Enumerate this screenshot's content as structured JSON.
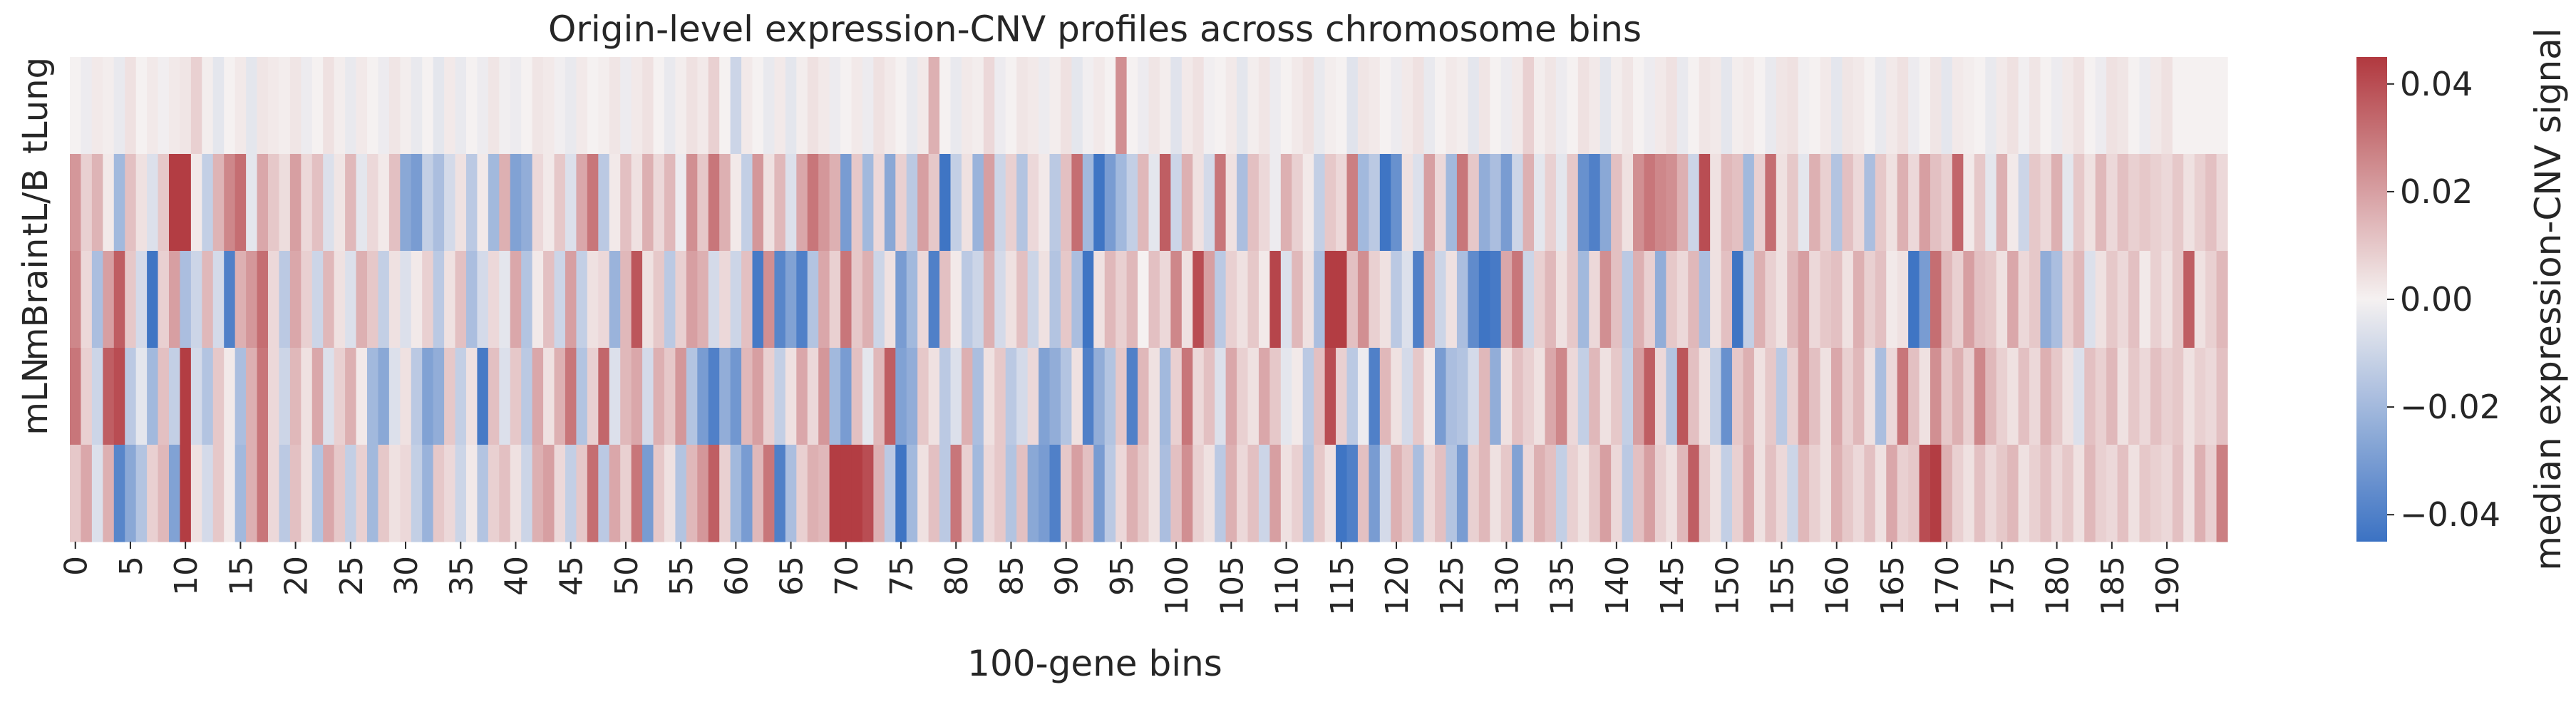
{
  "chart_data": {
    "type": "heatmap",
    "title": "Origin-level expression-CNV profiles across chromosome bins",
    "xlabel": "100-gene bins",
    "ylabel": "",
    "rows": [
      "tLung",
      "tL/B",
      "mBrain",
      "mLN",
      ""
    ],
    "x_tick_labels": [
      "0",
      "5",
      "10",
      "15",
      "20",
      "25",
      "30",
      "35",
      "40",
      "45",
      "50",
      "55",
      "60",
      "65",
      "70",
      "75",
      "80",
      "85",
      "90",
      "95",
      "100",
      "105",
      "110",
      "115",
      "120",
      "125",
      "130",
      "135",
      "140",
      "145",
      "150",
      "155",
      "160",
      "165",
      "170",
      "175",
      "180",
      "185",
      "190"
    ],
    "x_tick_step": 5,
    "n_bins": 196,
    "colorbar": {
      "label": "median expression-CNV signal",
      "ticks": [
        "0.04",
        "0.02",
        "0.00",
        "−0.02",
        "−0.04"
      ],
      "tick_values": [
        0.04,
        0.02,
        0.0,
        -0.02,
        -0.04
      ],
      "vmin": -0.045,
      "vmax": 0.045,
      "colormap": "vlag",
      "low_color": "#3b72c3",
      "mid_color": "#f5f1f1",
      "high_color": "#b1393f"
    },
    "values": [
      [
        0.0,
        -0.002,
        0.002,
        0.001,
        -0.003,
        0.004,
        0.0,
        0.002,
        -0.001,
        0.002,
        0.003,
        0.008,
        0.001,
        -0.004,
        0.0,
        0.002,
        -0.004,
        0.003,
        0.002,
        0.001,
        0.003,
        -0.002,
        0.0,
        0.004,
        0.001,
        -0.003,
        0.002,
        0.0,
        -0.002,
        0.003,
        0.001,
        -0.003,
        0.0,
        -0.004,
        0.002,
        -0.003,
        0.0,
        -0.002,
        0.003,
        -0.001,
        -0.002,
        0.0,
        0.003,
        0.002,
        -0.001,
        -0.003,
        0.002,
        0.0,
        0.001,
        0.003,
        -0.002,
        0.002,
        0.004,
        0.0,
        -0.003,
        0.001,
        0.004,
        0.002,
        0.008,
        0.0,
        -0.01,
        0.002,
        0.0,
        -0.003,
        0.002,
        -0.004,
        0.001,
        0.004,
        0.002,
        -0.002,
        0.0,
        0.002,
        -0.002,
        0.004,
        0.002,
        0.0,
        -0.003,
        0.002,
        0.016,
        0.0,
        -0.003,
        0.002,
        0.001,
        0.006,
        -0.002,
        0.0,
        0.003,
        0.002,
        -0.002,
        0.001,
        0.004,
        -0.004,
        -0.001,
        0.002,
        0.0,
        0.024,
        0.0,
        -0.002,
        0.003,
        0.001,
        -0.005,
        0.002,
        0.004,
        -0.001,
        0.0,
        0.002,
        -0.004,
        0.001,
        0.003,
        -0.002,
        0.0,
        0.002,
        0.004,
        -0.003,
        0.001,
        0.0,
        -0.005,
        0.003,
        0.002,
        0.0,
        -0.002,
        0.002,
        0.004,
        -0.003,
        0.0,
        0.002,
        0.001,
        -0.004,
        0.003,
        0.0,
        -0.002,
        0.002,
        0.008,
        0.001,
        0.003,
        -0.002,
        0.0,
        0.004,
        0.002,
        -0.004,
        0.001,
        0.003,
        0.0,
        -0.002,
        0.002,
        0.004,
        -0.003,
        0.0,
        0.003,
        0.002,
        -0.004,
        0.001,
        0.002,
        0.0,
        -0.003,
        0.003,
        0.004,
        -0.001,
        0.0,
        0.002,
        -0.004,
        0.003,
        0.002,
        0.0,
        -0.003,
        0.002,
        0.004,
        -0.002,
        0.0,
        0.003,
        -0.004,
        0.002,
        0.001,
        0.0,
        -0.003,
        0.002,
        0.004,
        -0.001,
        0.003,
        0.0,
        -0.002,
        0.002,
        0.004,
        0.0,
        -0.002,
        0.004,
        0.003,
        0.0,
        -0.002,
        0.002,
        0.004,
        0.0
      ],
      [
        0.022,
        0.008,
        0.015,
        0.002,
        -0.02,
        0.012,
        0.004,
        -0.006,
        0.01,
        0.044,
        0.044,
        0.002,
        -0.012,
        0.015,
        0.026,
        0.032,
        -0.004,
        0.018,
        0.01,
        0.005,
        0.02,
        0.006,
        0.012,
        -0.006,
        0.003,
        0.014,
        -0.004,
        0.006,
        0.002,
        0.012,
        -0.026,
        -0.03,
        -0.012,
        -0.018,
        -0.008,
        0.004,
        -0.014,
        0.002,
        -0.02,
        0.016,
        -0.028,
        -0.024,
        0.006,
        0.002,
        0.01,
        -0.006,
        0.018,
        0.03,
        -0.014,
        0.002,
        0.012,
        0.004,
        0.016,
        0.006,
        0.014,
        -0.002,
        0.024,
        0.01,
        0.03,
        0.016,
        0.002,
        -0.012,
        0.022,
        0.004,
        0.014,
        -0.006,
        0.018,
        0.03,
        0.022,
        0.016,
        -0.03,
        0.01,
        -0.02,
        0.006,
        -0.026,
        0.008,
        -0.014,
        0.02,
        0.01,
        -0.044,
        -0.012,
        0.004,
        -0.022,
        0.02,
        -0.01,
        0.008,
        -0.016,
        0.006,
        0.002,
        -0.014,
        0.012,
        0.032,
        -0.02,
        -0.044,
        -0.03,
        -0.02,
        -0.012,
        0.014,
        -0.004,
        0.036,
        -0.01,
        0.016,
        0.004,
        -0.008,
        0.03,
        0.004,
        -0.018,
        0.012,
        0.006,
        -0.002,
        0.016,
        0.008,
        0.002,
        -0.012,
        0.01,
        0.006,
        0.028,
        -0.02,
        -0.014,
        -0.044,
        -0.034,
        0.004,
        -0.006,
        0.02,
        0.006,
        -0.02,
        0.03,
        0.01,
        -0.024,
        -0.018,
        -0.03,
        -0.01,
        0.016,
        -0.004,
        0.008,
        -0.004,
        0.01,
        -0.034,
        -0.04,
        -0.026,
        0.012,
        0.004,
        0.024,
        0.03,
        0.026,
        0.024,
        0.016,
        -0.01,
        0.04,
        0.004,
        0.014,
        0.012,
        -0.02,
        0.008,
        0.032,
        0.004,
        0.01,
        -0.004,
        0.016,
        0.008,
        -0.016,
        0.012,
        0.006,
        -0.018,
        0.01,
        0.004,
        0.016,
        0.006,
        0.02,
        0.012,
        0.008,
        0.034,
        0.002,
        0.01,
        -0.004,
        0.016,
        0.002,
        -0.01,
        0.01,
        0.006,
        0.016,
        -0.004,
        0.01,
        0.004,
        0.014,
        0.006,
        0.012,
        0.008,
        0.01,
        0.008,
        0.006,
        0.01,
        0.004,
        0.008,
        0.012,
        0.006
      ],
      [
        0.026,
        0.006,
        -0.018,
        0.02,
        0.036,
        0.01,
        -0.008,
        -0.044,
        0.008,
        0.02,
        -0.018,
        -0.01,
        0.014,
        -0.008,
        -0.04,
        0.016,
        0.022,
        0.032,
        0.006,
        -0.014,
        0.018,
        0.008,
        -0.01,
        0.014,
        0.004,
        -0.006,
        0.016,
        0.01,
        -0.012,
        0.004,
        -0.006,
        0.002,
        0.008,
        -0.014,
        0.004,
        0.012,
        -0.018,
        -0.008,
        0.006,
        -0.004,
        0.018,
        -0.016,
        0.002,
        0.012,
        -0.01,
        0.02,
        -0.012,
        0.004,
        0.006,
        -0.022,
        0.014,
        0.038,
        0.004,
        0.01,
        -0.014,
        0.008,
        0.02,
        0.016,
        -0.008,
        0.006,
        -0.01,
        0.012,
        -0.042,
        0.024,
        -0.038,
        -0.028,
        -0.04,
        -0.016,
        0.018,
        0.008,
        0.03,
        0.01,
        0.016,
        -0.01,
        0.004,
        -0.03,
        -0.02,
        0.006,
        -0.04,
        0.012,
        0.002,
        -0.014,
        -0.01,
        0.016,
        -0.008,
        0.004,
        0.012,
        -0.01,
        0.004,
        -0.016,
        0.01,
        -0.018,
        -0.044,
        0.004,
        0.014,
        0.008,
        0.014,
        0.0,
        0.012,
        0.006,
        0.026,
        0.004,
        0.04,
        0.02,
        -0.014,
        0.008,
        0.004,
        0.01,
        0.002,
        0.042,
        -0.006,
        0.014,
        0.004,
        -0.018,
        0.044,
        0.044,
        0.012,
        0.024,
        0.008,
        0.004,
        -0.014,
        -0.006,
        -0.04,
        0.016,
        -0.01,
        0.004,
        -0.018,
        -0.036,
        -0.044,
        -0.042,
        0.018,
        0.03,
        -0.01,
        0.008,
        0.014,
        0.004,
        0.01,
        -0.02,
        0.006,
        0.024,
        0.012,
        -0.014,
        0.016,
        0.008,
        -0.024,
        0.01,
        0.006,
        0.014,
        -0.018,
        0.004,
        0.012,
        -0.044,
        -0.012,
        0.016,
        0.008,
        0.004,
        0.014,
        0.02,
        0.006,
        0.01,
        0.012,
        0.004,
        0.016,
        0.008,
        0.012,
        0.002,
        0.004,
        -0.044,
        -0.03,
        0.032,
        0.014,
        0.008,
        0.02,
        0.012,
        0.01,
        0.004,
        0.018,
        0.006,
        0.01,
        -0.024,
        -0.018,
        0.008,
        0.014,
        -0.006,
        0.004,
        0.01,
        0.006,
        0.012,
        0.002,
        0.008,
        0.004,
        0.01,
        0.036,
        0.004,
        0.008,
        0.014
      ],
      [
        0.03,
        0.008,
        -0.01,
        0.036,
        0.04,
        -0.014,
        -0.004,
        -0.02,
        0.012,
        -0.012,
        0.044,
        -0.008,
        -0.016,
        0.01,
        0.002,
        -0.018,
        0.016,
        0.03,
        0.006,
        -0.01,
        0.014,
        0.004,
        0.018,
        -0.006,
        0.008,
        0.016,
        0.002,
        -0.02,
        -0.026,
        -0.006,
        0.004,
        -0.014,
        -0.028,
        -0.024,
        0.01,
        -0.012,
        0.004,
        -0.042,
        0.012,
        -0.006,
        0.01,
        -0.014,
        0.018,
        0.004,
        0.016,
        0.03,
        -0.016,
        0.008,
        0.034,
        -0.006,
        0.014,
        0.018,
        -0.008,
        0.016,
        0.01,
        0.022,
        -0.016,
        -0.03,
        -0.04,
        -0.024,
        -0.032,
        0.014,
        0.02,
        0.008,
        -0.012,
        0.004,
        0.018,
        0.006,
        0.022,
        -0.02,
        -0.03,
        0.012,
        -0.004,
        0.014,
        0.036,
        -0.028,
        -0.024,
        0.01,
        0.004,
        -0.014,
        -0.006,
        0.016,
        -0.018,
        0.004,
        0.01,
        -0.014,
        -0.008,
        0.006,
        -0.028,
        -0.024,
        -0.016,
        0.004,
        -0.04,
        -0.024,
        -0.016,
        0.01,
        -0.04,
        0.014,
        0.004,
        -0.02,
        0.008,
        0.03,
        0.006,
        0.012,
        -0.006,
        0.018,
        0.008,
        0.004,
        0.018,
        0.01,
        -0.004,
        0.002,
        -0.014,
        0.012,
        0.04,
        0.008,
        -0.014,
        -0.002,
        -0.04,
        0.014,
        0.004,
        -0.008,
        0.01,
        0.002,
        -0.03,
        -0.018,
        -0.016,
        -0.008,
        0.014,
        -0.024,
        0.004,
        0.012,
        0.008,
        0.004,
        0.018,
        0.026,
        0.006,
        -0.012,
        0.014,
        0.004,
        0.01,
        -0.012,
        0.02,
        0.036,
        0.006,
        -0.016,
        0.038,
        0.012,
        0.004,
        -0.012,
        -0.034,
        0.01,
        0.016,
        0.004,
        0.01,
        -0.014,
        0.008,
        0.02,
        0.012,
        0.004,
        0.018,
        0.008,
        0.014,
        0.004,
        -0.018,
        0.006,
        0.03,
        0.012,
        0.004,
        0.024,
        0.01,
        0.016,
        0.008,
        0.026,
        0.014,
        0.008,
        0.004,
        0.012,
        0.006,
        0.016,
        0.01,
        0.004,
        -0.006,
        0.012,
        0.008,
        0.014,
        0.004,
        0.01,
        0.006,
        0.012,
        0.008,
        0.01,
        0.004,
        0.008,
        0.006,
        0.012
      ],
      [
        0.01,
        0.018,
        -0.006,
        0.016,
        -0.038,
        -0.026,
        -0.016,
        0.008,
        0.014,
        -0.028,
        0.044,
        0.004,
        -0.008,
        0.01,
        0.002,
        -0.02,
        0.016,
        0.03,
        0.006,
        -0.014,
        0.012,
        0.004,
        -0.016,
        0.018,
        0.01,
        -0.012,
        0.008,
        -0.02,
        0.01,
        0.004,
        0.006,
        -0.012,
        -0.022,
        0.01,
        0.006,
        -0.01,
        0.002,
        -0.016,
        0.008,
        0.012,
        0.004,
        -0.01,
        0.016,
        0.02,
        0.006,
        -0.012,
        0.01,
        0.032,
        -0.014,
        0.018,
        0.008,
        0.03,
        -0.03,
        0.01,
        0.004,
        -0.016,
        0.014,
        0.022,
        0.036,
        0.008,
        -0.02,
        -0.03,
        0.014,
        0.03,
        -0.04,
        -0.018,
        0.008,
        0.016,
        0.014,
        0.044,
        0.044,
        0.044,
        0.04,
        0.016,
        -0.014,
        -0.044,
        -0.02,
        0.004,
        0.012,
        -0.014,
        0.03,
        0.008,
        -0.02,
        0.006,
        0.01,
        -0.016,
        0.012,
        -0.026,
        -0.03,
        -0.04,
        0.01,
        0.02,
        0.012,
        -0.03,
        -0.014,
        0.006,
        0.016,
        0.01,
        0.004,
        -0.018,
        0.012,
        0.024,
        0.008,
        0.004,
        -0.014,
        0.016,
        0.006,
        0.012,
        -0.01,
        0.02,
        0.004,
        0.008,
        -0.016,
        0.01,
        0.004,
        -0.044,
        -0.04,
        0.012,
        -0.03,
        -0.008,
        0.016,
        0.01,
        -0.018,
        0.006,
        0.012,
        -0.016,
        -0.03,
        0.008,
        0.014,
        0.004,
        0.01,
        -0.028,
        0.006,
        0.016,
        0.012,
        -0.012,
        0.008,
        0.004,
        0.01,
        0.02,
        0.006,
        -0.014,
        0.012,
        0.02,
        0.008,
        0.004,
        0.014,
        0.036,
        0.01,
        0.004,
        -0.012,
        0.008,
        0.018,
        0.004,
        0.012,
        0.006,
        -0.01,
        0.014,
        0.008,
        0.004,
        0.016,
        0.01,
        0.006,
        0.012,
        0.004,
        0.018,
        0.008,
        0.01,
        0.04,
        0.044,
        0.016,
        0.008,
        0.004,
        0.012,
        0.006,
        0.01,
        0.014,
        0.004,
        0.008,
        0.012,
        0.006,
        0.01,
        0.004,
        0.014,
        0.008,
        0.006,
        0.012,
        0.004,
        0.01,
        0.008,
        0.006,
        0.012,
        0.004,
        0.016,
        0.008,
        0.028
      ]
    ]
  }
}
